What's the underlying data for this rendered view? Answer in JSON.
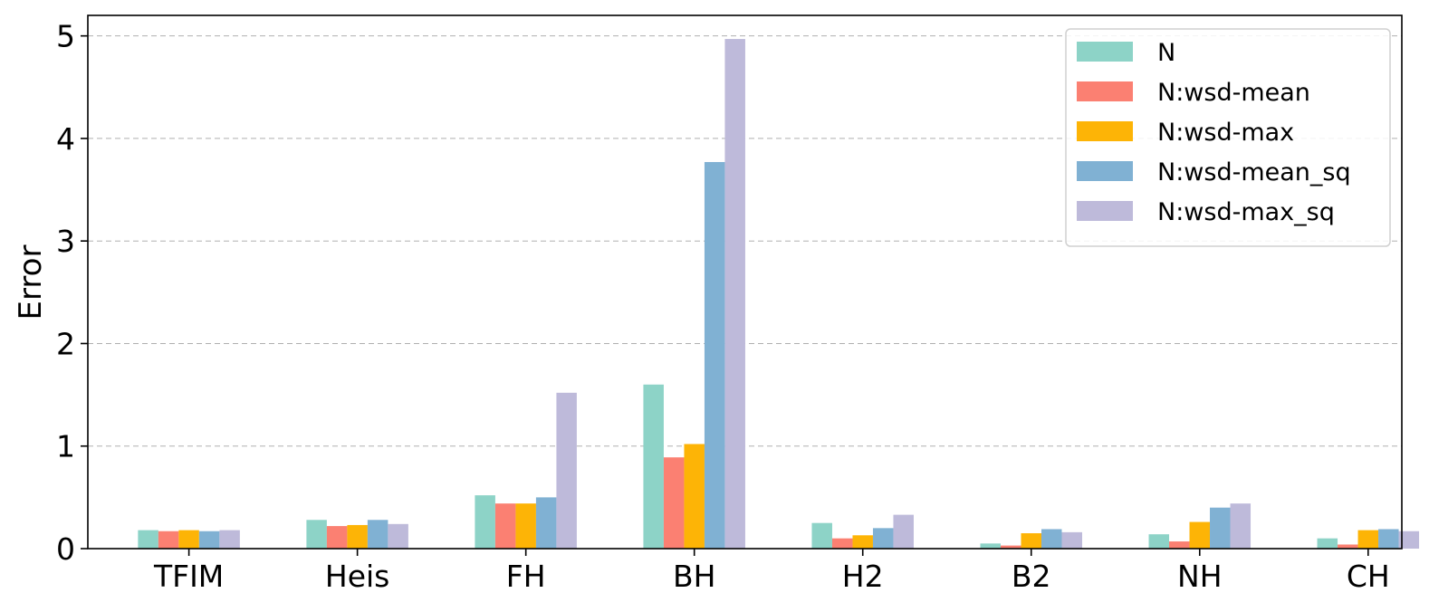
{
  "chart_data": {
    "type": "bar",
    "categories": [
      "TFIM",
      "Heis",
      "FH",
      "BH",
      "H2",
      "B2",
      "NH",
      "CH"
    ],
    "ylabel": "Error",
    "ylim": [
      0,
      5.2
    ],
    "yticks": [
      0,
      1,
      2,
      3,
      4,
      5
    ],
    "grid": "horizontal-dashed",
    "legend_position": "top-right",
    "series": [
      {
        "name": "N",
        "color": "#8dd3c7",
        "values": [
          0.18,
          0.28,
          0.52,
          1.6,
          0.25,
          0.05,
          0.14,
          0.1
        ]
      },
      {
        "name": "N:wsd-mean",
        "color": "#fb8072",
        "values": [
          0.17,
          0.22,
          0.44,
          0.89,
          0.1,
          0.03,
          0.07,
          0.04
        ]
      },
      {
        "name": "N:wsd-max",
        "color": "#fdb406",
        "values": [
          0.18,
          0.23,
          0.44,
          1.02,
          0.13,
          0.15,
          0.26,
          0.18
        ]
      },
      {
        "name": "N:wsd-mean_sq",
        "color": "#80b1d3",
        "values": [
          0.17,
          0.28,
          0.5,
          3.77,
          0.2,
          0.19,
          0.4,
          0.19
        ]
      },
      {
        "name": "N:wsd-max_sq",
        "color": "#bebada",
        "values": [
          0.18,
          0.24,
          1.52,
          4.97,
          0.33,
          0.16,
          0.44,
          0.17
        ]
      }
    ]
  }
}
